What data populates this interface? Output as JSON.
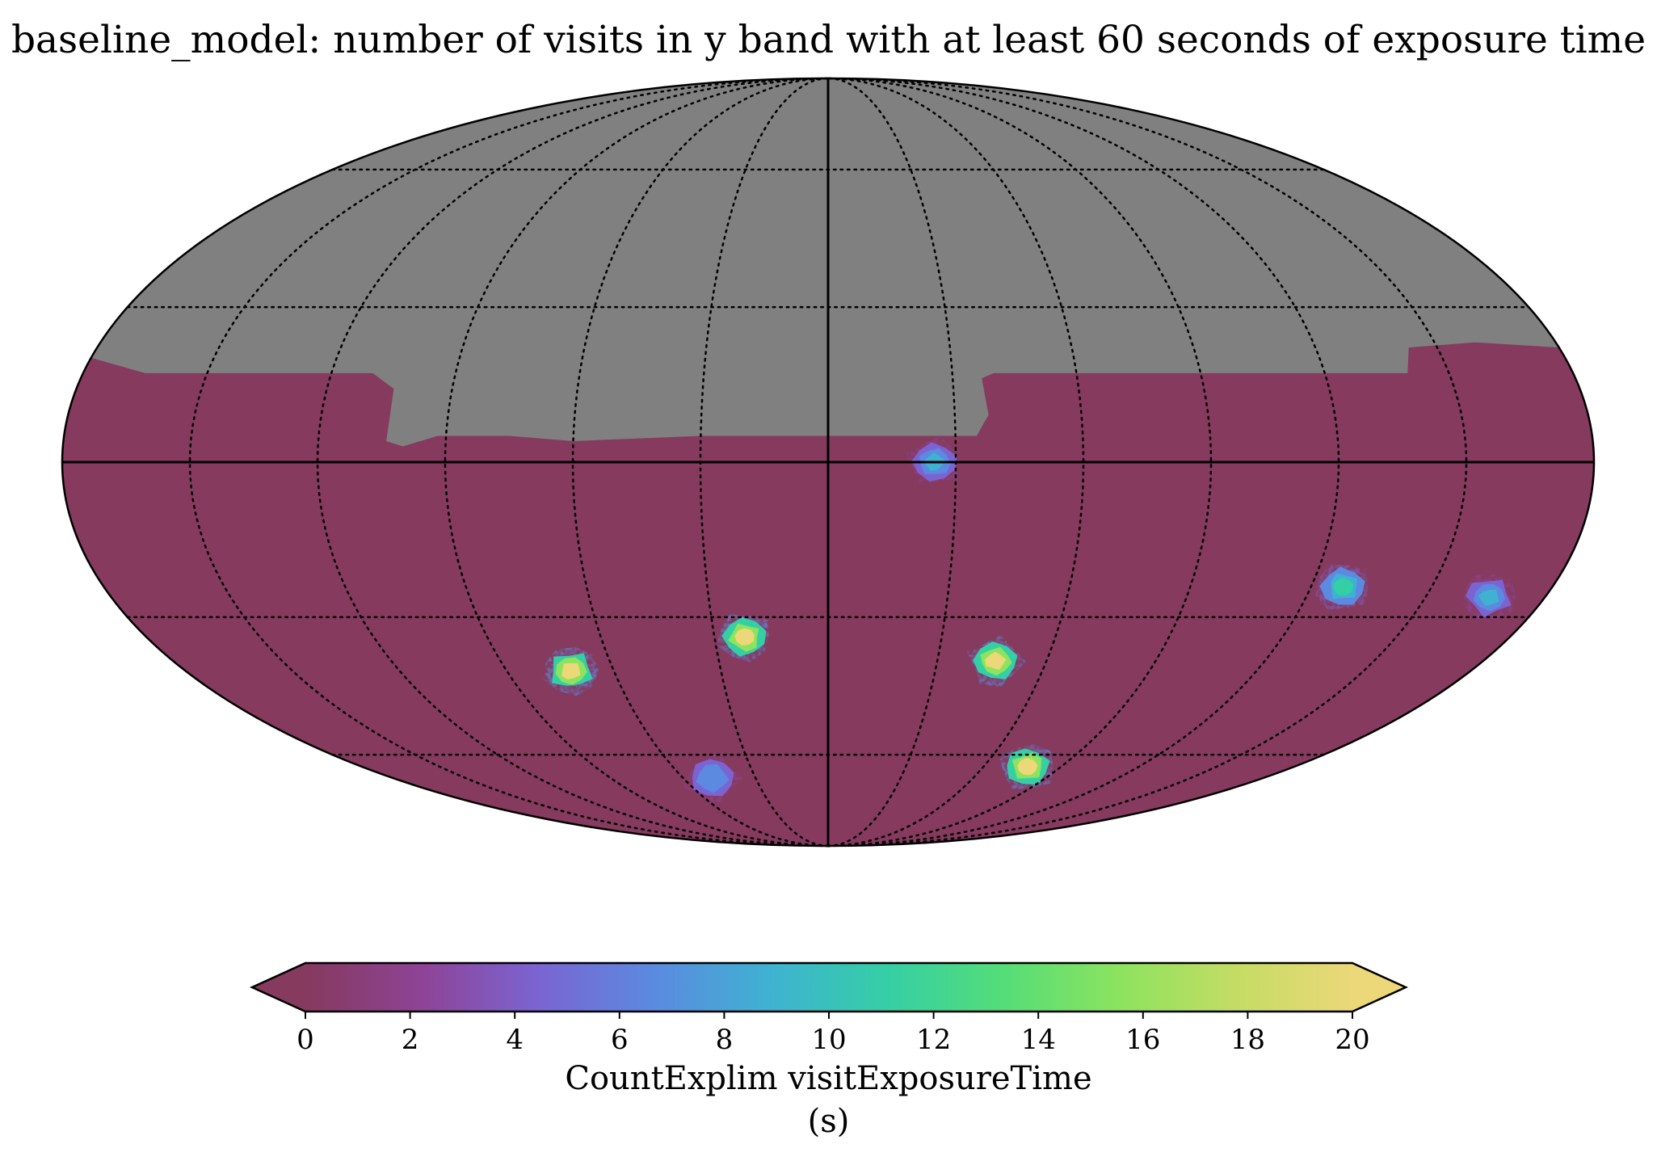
{
  "chart_data": {
    "type": "heatmap",
    "projection": "mollweide",
    "title": "baseline_model: number of visits in y band with at least 60 seconds of exposure time",
    "colorbar": {
      "label": "CountExplim visitExposureTime",
      "unit": "(s)",
      "range": [
        0,
        20
      ],
      "ticks": [
        "0",
        "2",
        "4",
        "6",
        "8",
        "10",
        "12",
        "14",
        "16",
        "18",
        "20"
      ],
      "extend": "both",
      "colormap": "spectral_r",
      "colors": [
        "#853a5e",
        "#8e4396",
        "#7b64d2",
        "#5b8ae0",
        "#3fb2d2",
        "#35cfa5",
        "#55dd78",
        "#8de35e",
        "#c5dc64",
        "#ecd879"
      ]
    },
    "masked_color": "#808080",
    "grid": {
      "on": true,
      "style": "dotted",
      "parallels_deg": [
        -60,
        -30,
        0,
        30,
        60
      ],
      "meridians_deg": [
        -150,
        -120,
        -90,
        -60,
        -30,
        0,
        30,
        60,
        90,
        120,
        150
      ]
    },
    "background_value": 0,
    "fields": [
      {
        "name": "",
        "lon_deg": 25,
        "lat_deg": 0,
        "peak_value": 9
      },
      {
        "name": "",
        "lon_deg": -22,
        "lat_deg": -34,
        "peak_value": 20
      },
      {
        "name": "",
        "lon_deg": -72,
        "lat_deg": -41,
        "peak_value": 19
      },
      {
        "name": "",
        "lon_deg": 46,
        "lat_deg": -39,
        "peak_value": 20
      },
      {
        "name": "",
        "lon_deg": 128,
        "lat_deg": -24,
        "peak_value": 12
      },
      {
        "name": "",
        "lon_deg": 166,
        "lat_deg": -26,
        "peak_value": 8
      },
      {
        "name": "",
        "lon_deg": -48,
        "lat_deg": -66,
        "peak_value": 7
      },
      {
        "name": "",
        "lon_deg": 77,
        "lat_deg": -63,
        "peak_value": 20
      }
    ],
    "mask_boundary": [
      {
        "lon_deg": -180,
        "lat_deg": 20
      },
      {
        "lon_deg": -165,
        "lat_deg": 17
      },
      {
        "lon_deg": -110,
        "lat_deg": 17
      },
      {
        "lon_deg": -104,
        "lat_deg": 14
      },
      {
        "lon_deg": -104,
        "lat_deg": 4
      },
      {
        "lon_deg": -100,
        "lat_deg": 3
      },
      {
        "lon_deg": -92,
        "lat_deg": 5
      },
      {
        "lon_deg": -75,
        "lat_deg": 5
      },
      {
        "lon_deg": -60,
        "lat_deg": 4
      },
      {
        "lon_deg": -30,
        "lat_deg": 5
      },
      {
        "lon_deg": 0,
        "lat_deg": 5
      },
      {
        "lon_deg": 35,
        "lat_deg": 5
      },
      {
        "lon_deg": 38,
        "lat_deg": 9
      },
      {
        "lon_deg": 37,
        "lat_deg": 16
      },
      {
        "lon_deg": 40,
        "lat_deg": 17
      },
      {
        "lon_deg": 100,
        "lat_deg": 17
      },
      {
        "lon_deg": 140,
        "lat_deg": 17
      },
      {
        "lon_deg": 143,
        "lat_deg": 22
      },
      {
        "lon_deg": 160,
        "lat_deg": 23
      },
      {
        "lon_deg": 180,
        "lat_deg": 22
      }
    ]
  }
}
